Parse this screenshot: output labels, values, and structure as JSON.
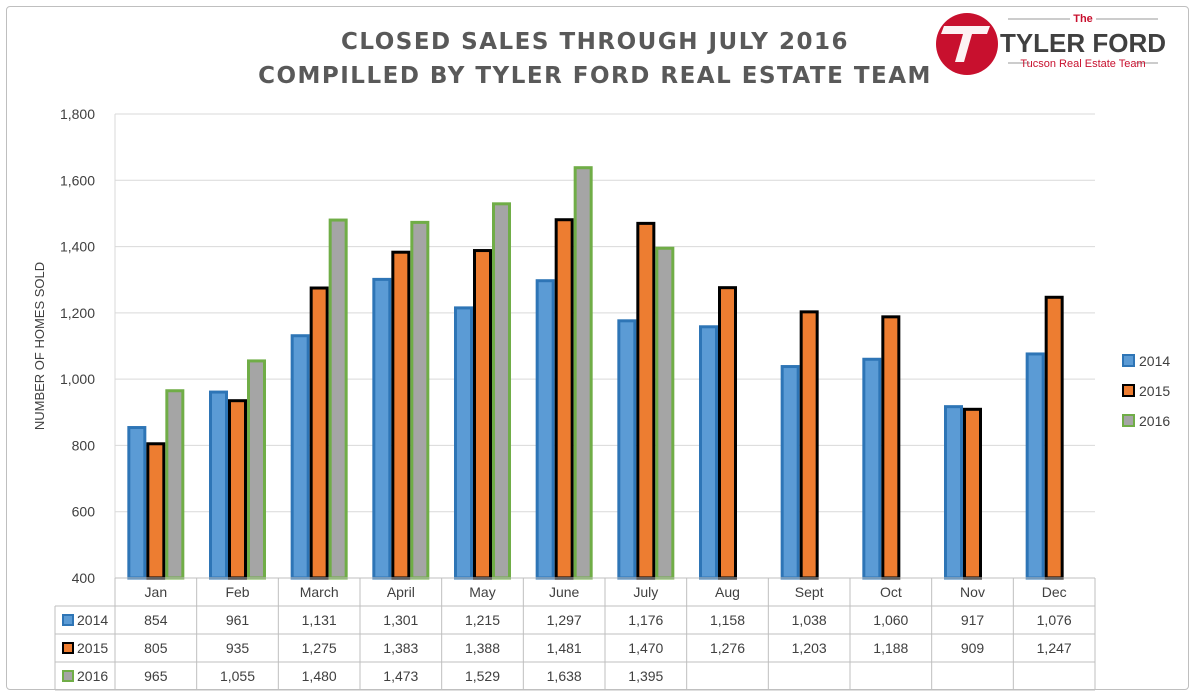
{
  "chart_data": {
    "type": "bar",
    "title": "CLOSED SALES THROUGH JULY 2016",
    "subtitle": "COMPILLED BY TYLER FORD REAL ESTATE TEAM",
    "ylabel": "NUMBER OF HOMES SOLD",
    "xlabel": "",
    "ylim": [
      400,
      1800
    ],
    "yticks": [
      "400",
      "600",
      "800",
      "1,000",
      "1,200",
      "1,400",
      "1,600",
      "1,800"
    ],
    "ytick_values": [
      400,
      600,
      800,
      1000,
      1200,
      1400,
      1600,
      1800
    ],
    "grid": true,
    "legend_position": "right",
    "categories": [
      "Jan",
      "Feb",
      "March",
      "April",
      "May",
      "June",
      "July",
      "Aug",
      "Sept",
      "Oct",
      "Nov",
      "Dec"
    ],
    "series": [
      {
        "name": "2014",
        "color": "#5b9bd5",
        "edge": "#2e75b6",
        "values": [
          854,
          961,
          1131,
          1301,
          1215,
          1297,
          1176,
          1158,
          1038,
          1060,
          917,
          1076
        ],
        "labels": [
          "854",
          "961",
          "1,131",
          "1,301",
          "1,215",
          "1,297",
          "1,176",
          "1,158",
          "1,038",
          "1,060",
          "917",
          "1,076"
        ]
      },
      {
        "name": "2015",
        "color": "#ed7d31",
        "edge": "#000000",
        "values": [
          805,
          935,
          1275,
          1383,
          1388,
          1481,
          1470,
          1276,
          1203,
          1188,
          909,
          1247
        ],
        "labels": [
          "805",
          "935",
          "1,275",
          "1,383",
          "1,388",
          "1,481",
          "1,470",
          "1,276",
          "1,203",
          "1,188",
          "909",
          "1,247"
        ]
      },
      {
        "name": "2016",
        "color": "#a5a5a5",
        "edge": "#70ad47",
        "values": [
          965,
          1055,
          1480,
          1473,
          1529,
          1638,
          1395,
          null,
          null,
          null,
          null,
          null
        ],
        "labels": [
          "965",
          "1,055",
          "1,480",
          "1,473",
          "1,529",
          "1,638",
          "1,395",
          "",
          "",
          "",
          "",
          ""
        ]
      }
    ]
  },
  "logo": {
    "monogram": "TF",
    "the": "The",
    "name": "TYLER FORD",
    "tagline": "Tucson Real Estate Team",
    "red": "#c8102e"
  }
}
